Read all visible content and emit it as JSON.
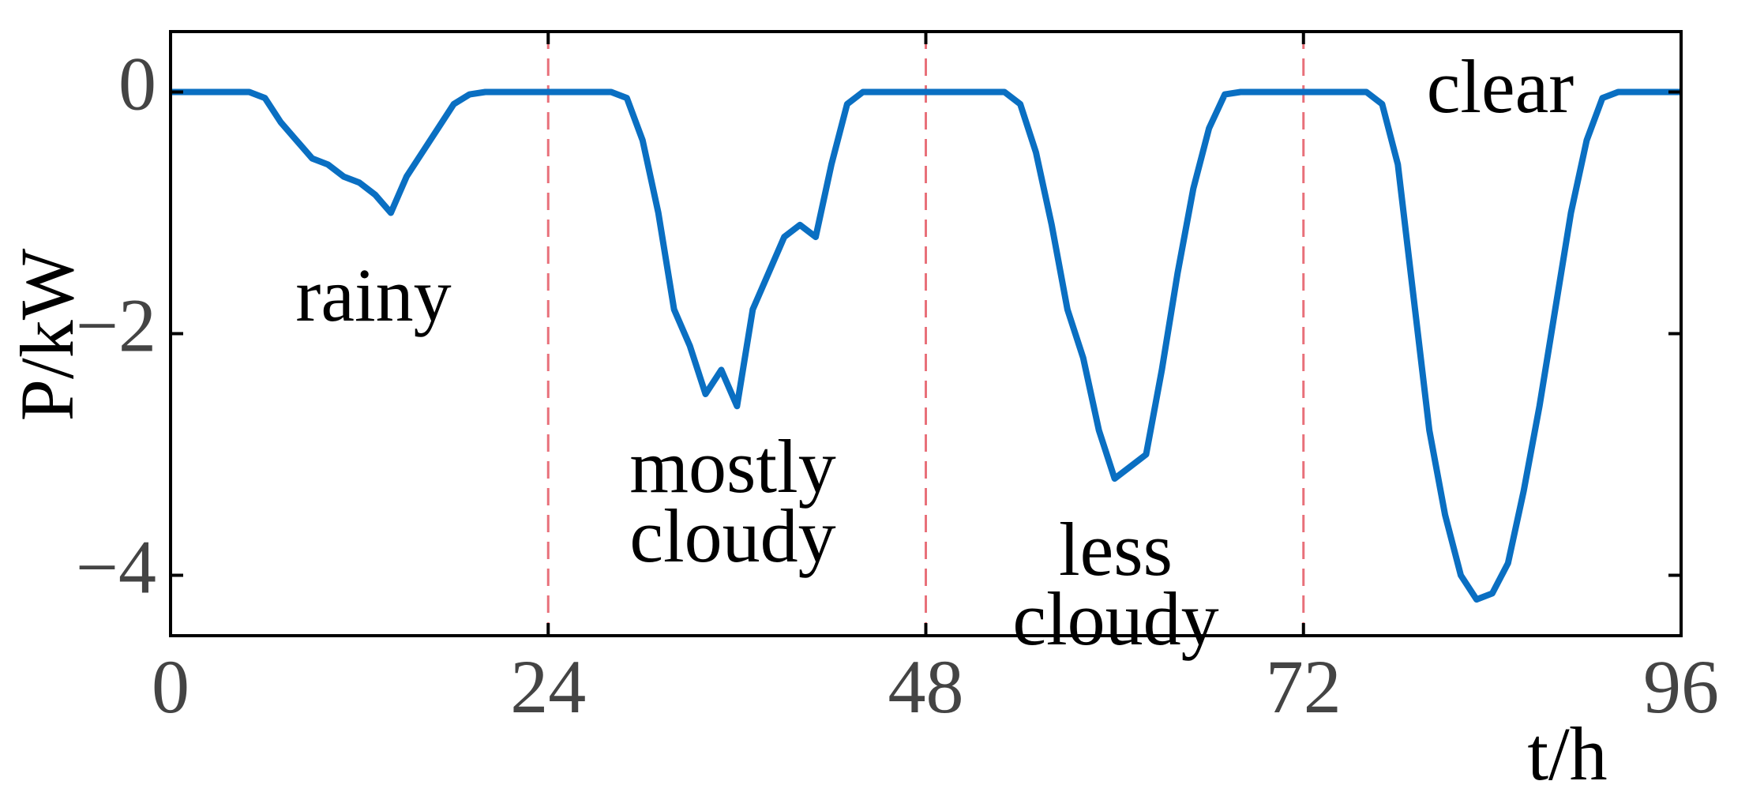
{
  "chart_data": {
    "type": "line",
    "xlabel": "t/h",
    "ylabel": "P/kW",
    "x": [
      0,
      1,
      2,
      3,
      4,
      5,
      6,
      7,
      8,
      9,
      10,
      11,
      12,
      13,
      14,
      15,
      16,
      17,
      18,
      19,
      20,
      21,
      22,
      23,
      24,
      25,
      26,
      27,
      28,
      29,
      30,
      31,
      32,
      33,
      34,
      35,
      36,
      37,
      38,
      39,
      40,
      41,
      42,
      43,
      44,
      45,
      46,
      47,
      48,
      49,
      50,
      51,
      52,
      53,
      54,
      55,
      56,
      57,
      58,
      59,
      60,
      61,
      62,
      63,
      64,
      65,
      66,
      67,
      68,
      69,
      70,
      71,
      72,
      73,
      74,
      75,
      76,
      77,
      78,
      79,
      80,
      81,
      82,
      83,
      84,
      85,
      86,
      87,
      88,
      89,
      90,
      91,
      92,
      93,
      94,
      95,
      96
    ],
    "values": [
      0,
      0,
      0,
      0,
      0,
      0,
      -0.05,
      -0.25,
      -0.4,
      -0.55,
      -0.6,
      -0.7,
      -0.75,
      -0.85,
      -1.0,
      -0.7,
      -0.5,
      -0.3,
      -0.1,
      -0.02,
      0,
      0,
      0,
      0,
      0,
      0,
      0,
      0,
      0,
      -0.05,
      -0.4,
      -1.0,
      -1.8,
      -2.1,
      -2.5,
      -2.3,
      -2.6,
      -1.8,
      -1.5,
      -1.2,
      -1.1,
      -1.2,
      -0.6,
      -0.1,
      0,
      0,
      0,
      0,
      0,
      0,
      0,
      0,
      0,
      0,
      -0.1,
      -0.5,
      -1.1,
      -1.8,
      -2.2,
      -2.8,
      -3.2,
      -3.1,
      -3.0,
      -2.3,
      -1.5,
      -0.8,
      -0.3,
      -0.02,
      0,
      0,
      0,
      0,
      0,
      0,
      0,
      0,
      0,
      -0.1,
      -0.6,
      -1.7,
      -2.8,
      -3.5,
      -4.0,
      -4.2,
      -4.15,
      -3.9,
      -3.3,
      -2.6,
      -1.8,
      -1.0,
      -0.4,
      -0.05,
      0,
      0,
      0,
      0,
      0
    ],
    "color": "#0a6fc2",
    "xlim": [
      0,
      96
    ],
    "xticks": [
      0,
      24,
      48,
      72,
      96
    ],
    "ylim": [
      -4.5,
      0.5
    ],
    "yticks": [
      {
        "value": -4,
        "label": "−4"
      },
      {
        "value": -2,
        "label": "−2"
      },
      0
    ],
    "vlines": [
      24,
      48,
      72
    ],
    "vline_color": "#e8707a",
    "annotations": [
      "rainy",
      "mostly cloudy",
      "less cloudy",
      "clear"
    ]
  }
}
